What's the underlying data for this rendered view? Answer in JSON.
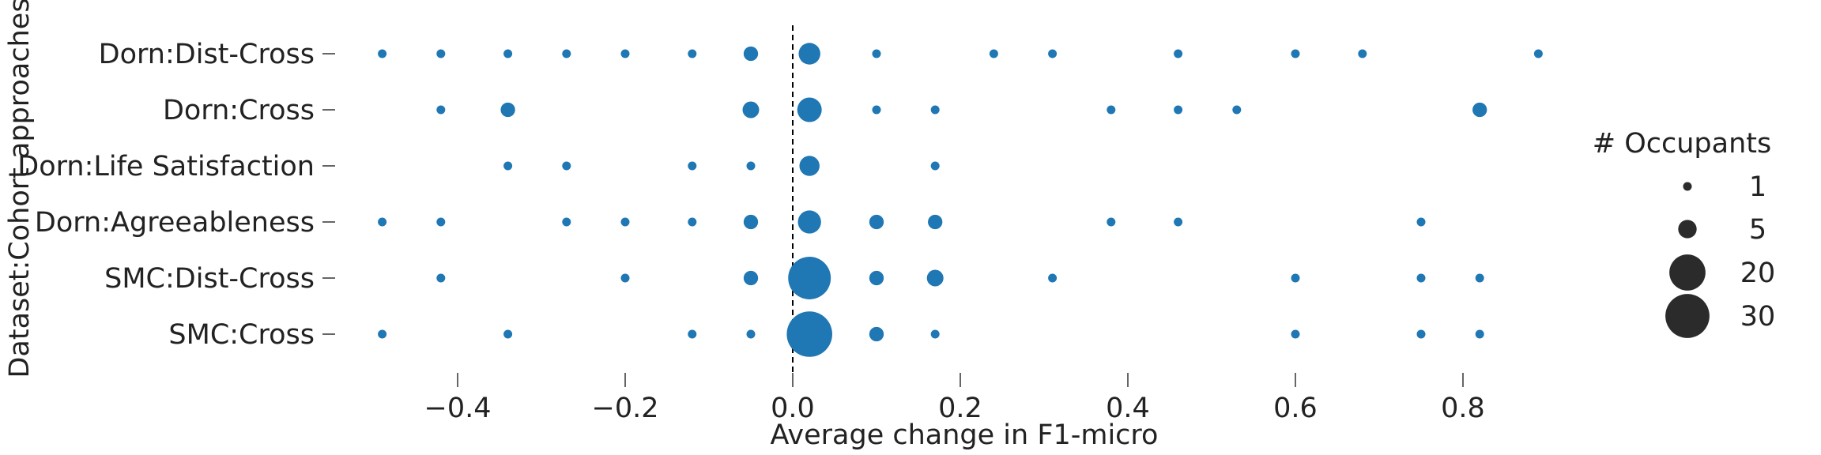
{
  "chart_data": {
    "type": "scatter",
    "title": "",
    "xlabel": "Average change in F1-micro",
    "ylabel": "Dataset:Cohort approaches",
    "xlim": [
      -0.55,
      0.95
    ],
    "xticks": [
      -0.4,
      -0.2,
      0.0,
      0.2,
      0.4,
      0.6,
      0.8
    ],
    "xtick_labels": [
      "−0.4",
      "−0.2",
      "0.0",
      "0.2",
      "0.4",
      "0.6",
      "0.8"
    ],
    "grid": false,
    "reference_line_x": 0.0,
    "color": "#1f77b4",
    "legend": {
      "title": "# Occupants",
      "placement": "right",
      "sizes": [
        1,
        5,
        20,
        30
      ],
      "labels": [
        "1",
        "5",
        "20",
        "30"
      ]
    },
    "categories": [
      "Dorn:Dist-Cross",
      "Dorn:Cross",
      "Dorn:Life Satisfaction",
      "Dorn:Agreeableness",
      "SMC:Dist-Cross",
      "SMC:Cross"
    ],
    "series": [
      {
        "category": "Dorn:Dist-Cross",
        "points": [
          {
            "x": -0.49,
            "n": 1
          },
          {
            "x": -0.42,
            "n": 1
          },
          {
            "x": -0.34,
            "n": 1
          },
          {
            "x": -0.27,
            "n": 1
          },
          {
            "x": -0.2,
            "n": 1
          },
          {
            "x": -0.12,
            "n": 1
          },
          {
            "x": -0.05,
            "n": 3
          },
          {
            "x": 0.02,
            "n": 7
          },
          {
            "x": 0.1,
            "n": 1
          },
          {
            "x": 0.24,
            "n": 1
          },
          {
            "x": 0.31,
            "n": 1
          },
          {
            "x": 0.46,
            "n": 1
          },
          {
            "x": 0.6,
            "n": 1
          },
          {
            "x": 0.68,
            "n": 1
          },
          {
            "x": 0.89,
            "n": 1
          }
        ]
      },
      {
        "category": "Dorn:Cross",
        "points": [
          {
            "x": -0.42,
            "n": 1
          },
          {
            "x": -0.34,
            "n": 3
          },
          {
            "x": -0.05,
            "n": 4
          },
          {
            "x": 0.02,
            "n": 9
          },
          {
            "x": 0.1,
            "n": 1
          },
          {
            "x": 0.17,
            "n": 1
          },
          {
            "x": 0.38,
            "n": 1
          },
          {
            "x": 0.46,
            "n": 1
          },
          {
            "x": 0.53,
            "n": 1
          },
          {
            "x": 0.82,
            "n": 3
          }
        ]
      },
      {
        "category": "Dorn:Life Satisfaction",
        "points": [
          {
            "x": -0.34,
            "n": 1
          },
          {
            "x": -0.27,
            "n": 1
          },
          {
            "x": -0.12,
            "n": 1
          },
          {
            "x": -0.05,
            "n": 1
          },
          {
            "x": 0.02,
            "n": 6
          },
          {
            "x": 0.17,
            "n": 1
          }
        ]
      },
      {
        "category": "Dorn:Agreeableness",
        "points": [
          {
            "x": -0.49,
            "n": 1
          },
          {
            "x": -0.42,
            "n": 1
          },
          {
            "x": -0.27,
            "n": 1
          },
          {
            "x": -0.2,
            "n": 1
          },
          {
            "x": -0.12,
            "n": 1
          },
          {
            "x": -0.05,
            "n": 3
          },
          {
            "x": 0.02,
            "n": 8
          },
          {
            "x": 0.1,
            "n": 3
          },
          {
            "x": 0.17,
            "n": 3
          },
          {
            "x": 0.38,
            "n": 1
          },
          {
            "x": 0.46,
            "n": 1
          },
          {
            "x": 0.75,
            "n": 1
          }
        ]
      },
      {
        "category": "SMC:Dist-Cross",
        "points": [
          {
            "x": -0.42,
            "n": 1
          },
          {
            "x": -0.2,
            "n": 1
          },
          {
            "x": -0.05,
            "n": 3
          },
          {
            "x": 0.02,
            "n": 28
          },
          {
            "x": 0.1,
            "n": 3
          },
          {
            "x": 0.17,
            "n": 4
          },
          {
            "x": 0.31,
            "n": 1
          },
          {
            "x": 0.6,
            "n": 1
          },
          {
            "x": 0.75,
            "n": 1
          },
          {
            "x": 0.82,
            "n": 1
          }
        ]
      },
      {
        "category": "SMC:Cross",
        "points": [
          {
            "x": -0.49,
            "n": 1
          },
          {
            "x": -0.34,
            "n": 1
          },
          {
            "x": -0.12,
            "n": 1
          },
          {
            "x": -0.05,
            "n": 1
          },
          {
            "x": 0.02,
            "n": 32
          },
          {
            "x": 0.1,
            "n": 3
          },
          {
            "x": 0.17,
            "n": 1
          },
          {
            "x": 0.6,
            "n": 1
          },
          {
            "x": 0.75,
            "n": 1
          },
          {
            "x": 0.82,
            "n": 1
          }
        ]
      }
    ]
  }
}
